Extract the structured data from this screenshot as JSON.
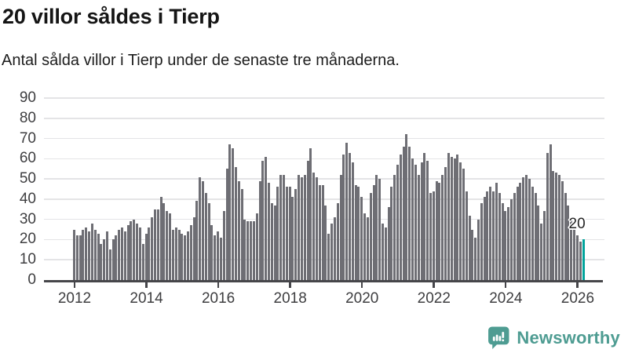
{
  "header": {
    "title": "20 villor såldes i Tierp",
    "subtitle": "Antal sålda villor i Tierp under de senaste tre månaderna."
  },
  "chart_data": {
    "type": "bar",
    "title": "20 villor såldes i Tierp",
    "xlabel": "",
    "ylabel": "",
    "x_start": "2012-01",
    "x_end": "2026-03",
    "frequency": "monthly",
    "x_tick_labels": [
      "2012",
      "2014",
      "2016",
      "2018",
      "2020",
      "2022",
      "2024",
      "2026"
    ],
    "y_ticks": [
      0,
      10,
      20,
      30,
      40,
      50,
      60,
      70,
      80,
      90
    ],
    "ylim": [
      0,
      90
    ],
    "grid": true,
    "legend": "none",
    "bar_color": "#6e6e74",
    "highlight_color": "#00a39b",
    "highlight_label": "20",
    "highlight_index_from_end": 1,
    "values": [
      25,
      22,
      22,
      25,
      26,
      24,
      28,
      25,
      23,
      18,
      20,
      24,
      15,
      20,
      22,
      25,
      26,
      24,
      27,
      29,
      30,
      28,
      26,
      18,
      23,
      26,
      31,
      35,
      35,
      41,
      38,
      34,
      33,
      25,
      26,
      25,
      23,
      22,
      24,
      27,
      31,
      39,
      51,
      49,
      43,
      38,
      27,
      22,
      24,
      21,
      34,
      55,
      67,
      65,
      56,
      49,
      45,
      30,
      29,
      29,
      29,
      33,
      49,
      59,
      61,
      48,
      38,
      37,
      46,
      52,
      52,
      46,
      46,
      41,
      45,
      52,
      51,
      52,
      59,
      65,
      53,
      51,
      47,
      47,
      37,
      23,
      28,
      31,
      38,
      52,
      62,
      68,
      63,
      58,
      47,
      46,
      41,
      33,
      31,
      43,
      47,
      52,
      50,
      28,
      26,
      36,
      46,
      52,
      57,
      62,
      66,
      72,
      66,
      60,
      57,
      52,
      58,
      63,
      59,
      43,
      44,
      49,
      48,
      52,
      56,
      63,
      61,
      60,
      62,
      58,
      55,
      44,
      32,
      25,
      21,
      30,
      38,
      41,
      44,
      46,
      44,
      48,
      43,
      38,
      34,
      36,
      40,
      43,
      46,
      48,
      51,
      52,
      50,
      46,
      43,
      37,
      28,
      34,
      63,
      67,
      54,
      53,
      52,
      49,
      43,
      37,
      30,
      26,
      22,
      19,
      20
    ]
  },
  "footer": {
    "brand": "Newsworthy",
    "brand_color": "#4e9c92"
  },
  "colors": {
    "background": "#ffffff",
    "bar": "#6e6e74",
    "highlight": "#00a39b",
    "grid": "#e4e4e6",
    "axis": "#46464a",
    "text": "#1d1d1d"
  }
}
